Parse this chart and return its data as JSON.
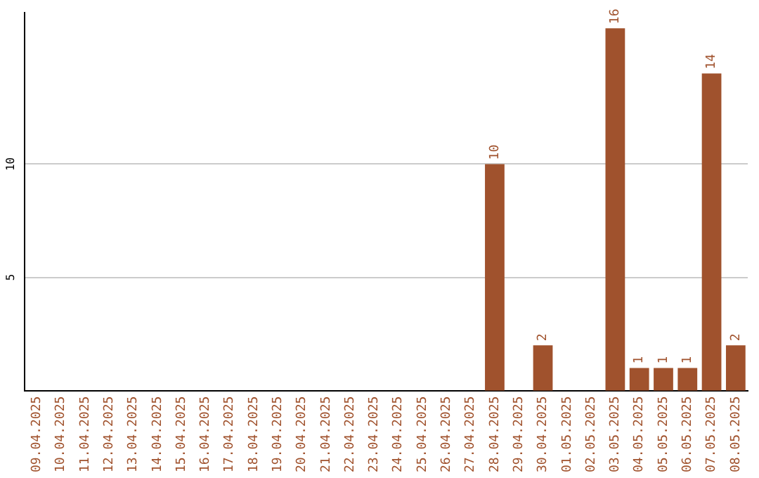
{
  "chart_data": {
    "type": "bar",
    "categories": [
      "09.04.2025",
      "10.04.2025",
      "11.04.2025",
      "12.04.2025",
      "13.04.2025",
      "14.04.2025",
      "15.04.2025",
      "16.04.2025",
      "17.04.2025",
      "18.04.2025",
      "19.04.2025",
      "20.04.2025",
      "21.04.2025",
      "22.04.2025",
      "23.04.2025",
      "24.04.2025",
      "25.04.2025",
      "26.04.2025",
      "27.04.2025",
      "28.04.2025",
      "29.04.2025",
      "30.04.2025",
      "01.05.2025",
      "02.05.2025",
      "03.05.2025",
      "04.05.2025",
      "05.05.2025",
      "06.05.2025",
      "07.05.2025",
      "08.05.2025"
    ],
    "values": [
      0,
      0,
      0,
      0,
      0,
      0,
      0,
      0,
      0,
      0,
      0,
      0,
      0,
      0,
      0,
      0,
      0,
      0,
      0,
      10,
      0,
      2,
      0,
      0,
      16,
      1,
      1,
      1,
      14,
      2
    ],
    "value_labels": [
      null,
      null,
      null,
      null,
      null,
      null,
      null,
      null,
      null,
      null,
      null,
      null,
      null,
      null,
      null,
      null,
      null,
      null,
      null,
      "10",
      null,
      "2",
      null,
      null,
      "16",
      "1",
      "1",
      "1",
      "14",
      "2"
    ],
    "color": "#a0522d",
    "ylim": [
      0,
      16.7
    ],
    "yticks": [
      5,
      10
    ],
    "grid": "y",
    "legend": false
  }
}
